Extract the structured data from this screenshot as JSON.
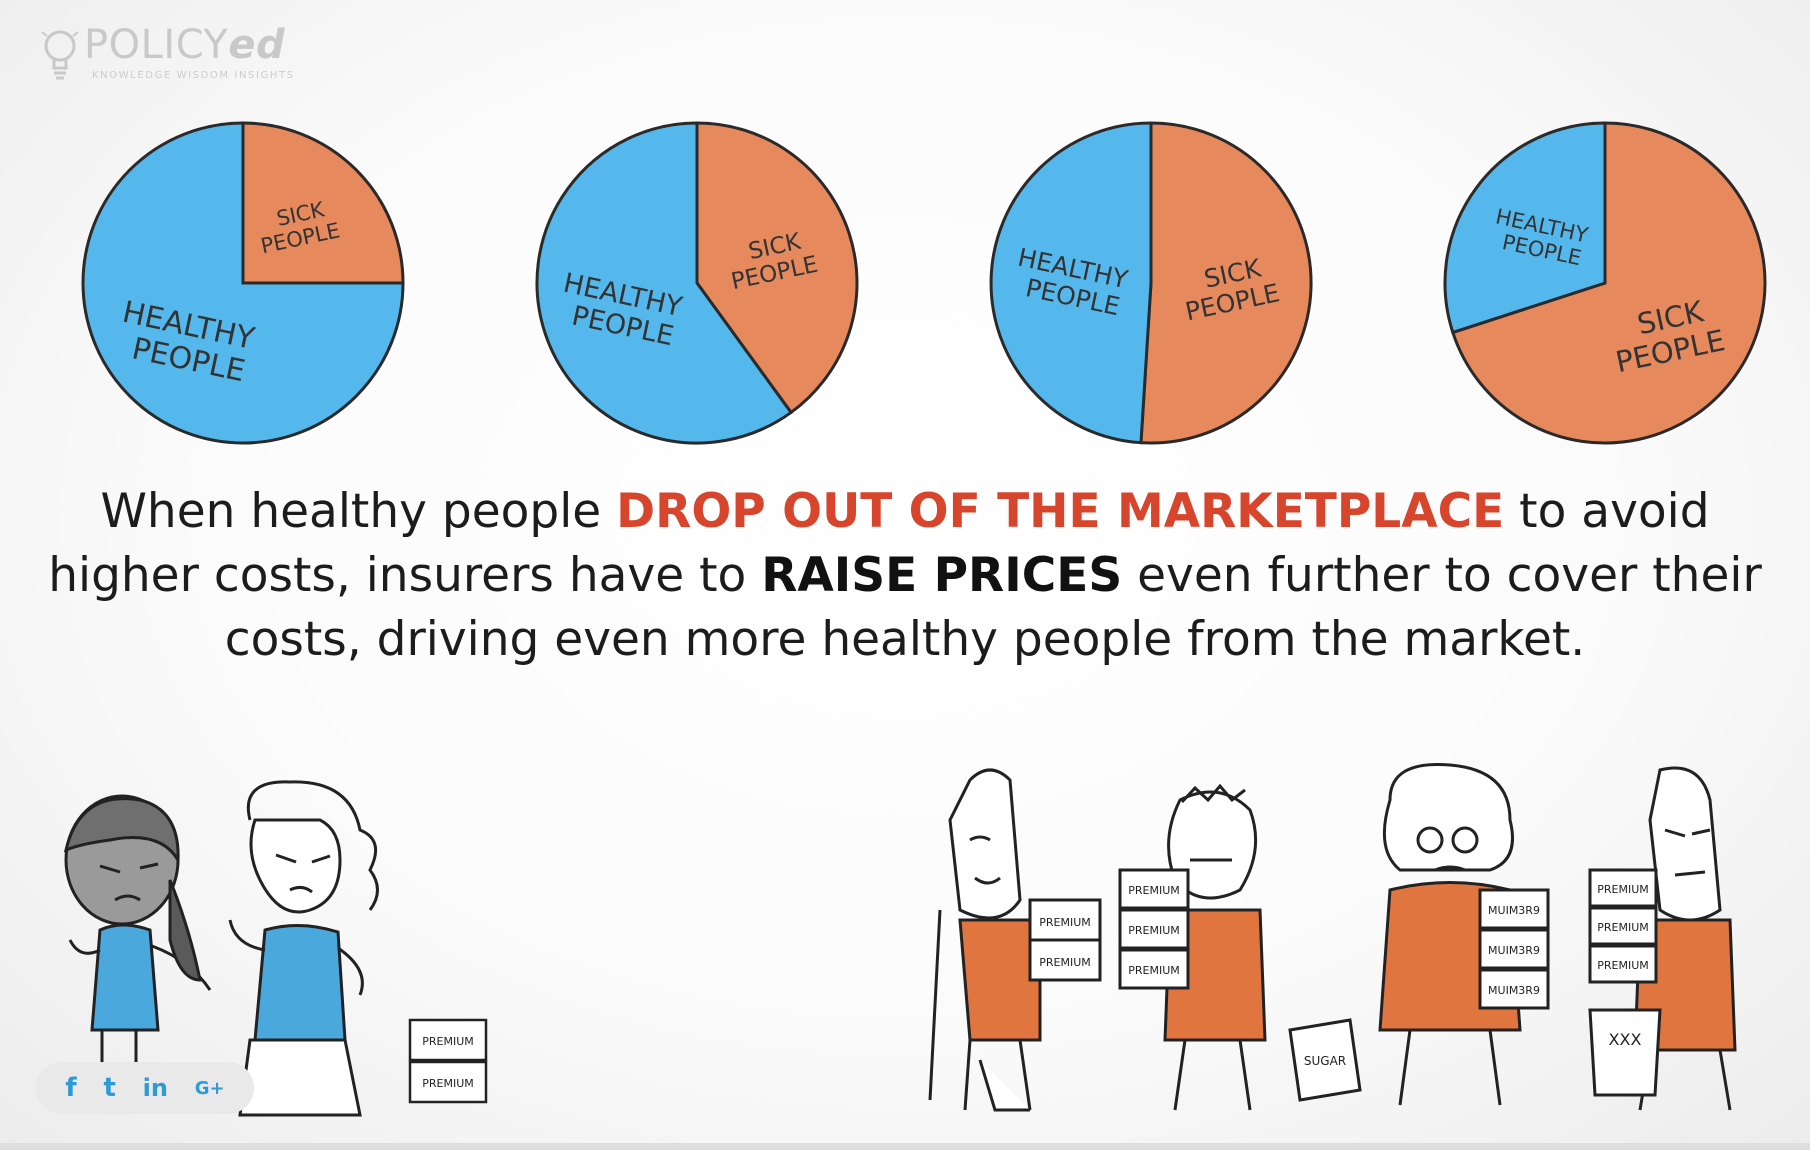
{
  "logo": {
    "name_main": "POLICY",
    "name_accent": "ed",
    "tagline": "KNOWLEDGE WISDOM INSIGHTS"
  },
  "colors": {
    "healthy": "#55b8ec",
    "sick": "#e68a5d",
    "outline": "#2a2a2a",
    "highlight_red": "#d6452c",
    "shirt": "#e0753f",
    "shirt_blue": "#4aa8dc"
  },
  "chart_data": [
    {
      "type": "pie",
      "title": "",
      "categories": [
        "HEALTHY PEOPLE",
        "SICK PEOPLE"
      ],
      "values": [
        75,
        25
      ]
    },
    {
      "type": "pie",
      "title": "",
      "categories": [
        "HEALTHY PEOPLE",
        "SICK PEOPLE"
      ],
      "values": [
        60,
        40
      ]
    },
    {
      "type": "pie",
      "title": "",
      "categories": [
        "HEALTHY PEOPLE",
        "SICK PEOPLE"
      ],
      "values": [
        49,
        51
      ]
    },
    {
      "type": "pie",
      "title": "",
      "categories": [
        "HEALTHY PEOPLE",
        "SICK PEOPLE"
      ],
      "values": [
        30,
        70
      ]
    }
  ],
  "pie_labels": {
    "healthy_line1": "HEALTHY",
    "healthy_line2": "PEOPLE",
    "sick_line1": "SICK",
    "sick_line2": "PEOPLE"
  },
  "caption": {
    "part1": "When healthy people ",
    "highlight1": "DROP OUT OF THE MARKETPLACE",
    "part2": " to avoid higher costs, insurers have to ",
    "highlight2": "RAISE PRICES",
    "part3": " even further to cover their costs, driving even more healthy people from the market."
  },
  "box_labels": {
    "premium": "PREMIUM",
    "premium_mirrored": "MUIM3R9",
    "sugar": "SUGAR",
    "xxx": "XXX"
  },
  "social": {
    "facebook": "f",
    "twitter": "t",
    "linkedin": "in",
    "googleplus": "G+"
  },
  "icons": [
    "lightbulb-icon",
    "facebook-icon",
    "twitter-icon",
    "linkedin-icon",
    "google-plus-icon"
  ]
}
